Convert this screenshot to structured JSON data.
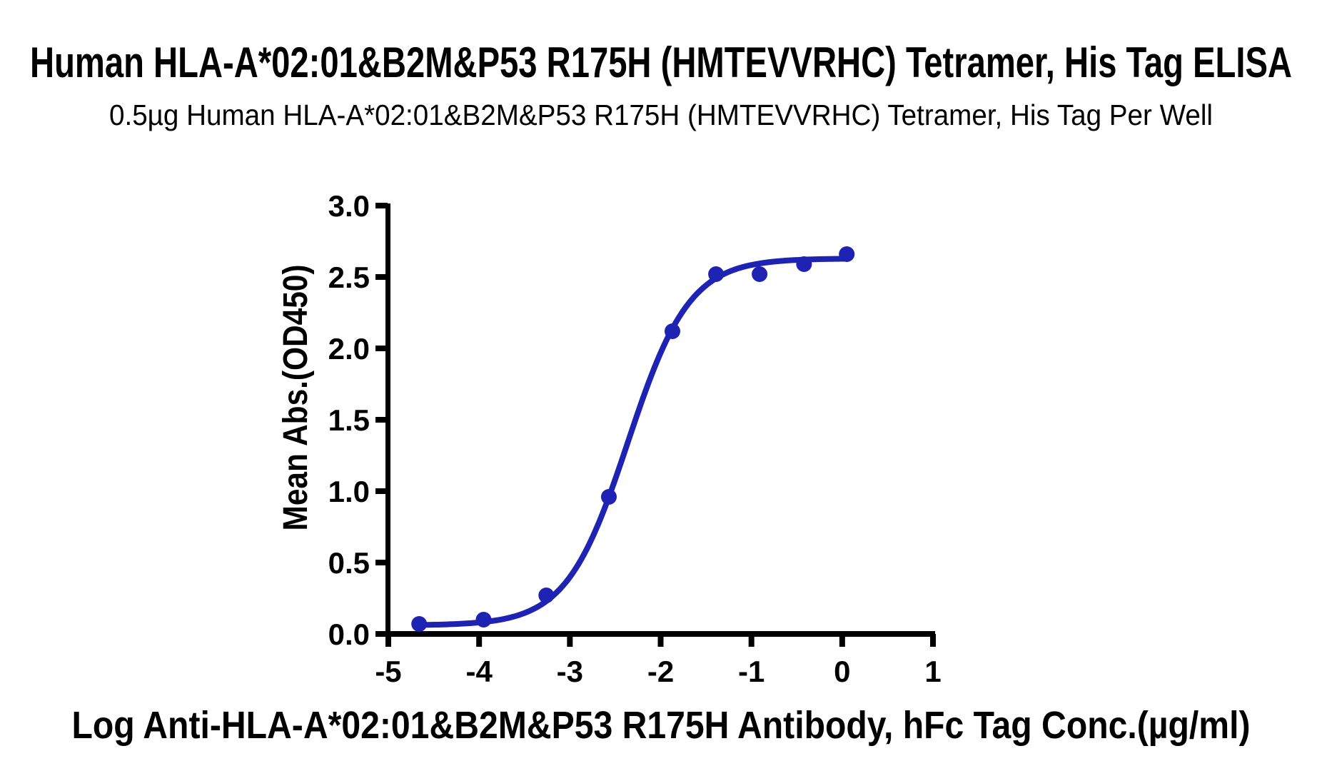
{
  "header": {
    "title": "Human HLA-A*02:01&B2M&P53 R175H (HMTEVVRHC) Tetramer, His Tag ELISA",
    "subtitle": "0.5µg Human HLA-A*02:01&B2M&P53 R175H (HMTEVVRHC) Tetramer, His Tag Per Well"
  },
  "chart_data": {
    "type": "scatter",
    "title": "Human HLA-A*02:01&B2M&P53 R175H (HMTEVVRHC) Tetramer, His Tag ELISA",
    "subtitle": "0.5µg Human HLA-A*02:01&B2M&P53 R175H (HMTEVVRHC) Tetramer, His Tag Per Well",
    "xlabel": "Log Anti-HLA-A*02:01&B2M&P53 R175H Antibody, hFc Tag Conc.(µg/ml)",
    "ylabel": "Mean Abs.(OD450)",
    "x": [
      -4.66,
      -3.95,
      -3.26,
      -2.57,
      -1.87,
      -1.39,
      -0.91,
      -0.42,
      0.05
    ],
    "y": [
      0.07,
      0.1,
      0.27,
      0.96,
      2.12,
      2.52,
      2.52,
      2.59,
      2.66
    ],
    "xlim": [
      -5,
      1
    ],
    "ylim": [
      0,
      3
    ],
    "x_ticks": {
      "values": [
        -5,
        -4,
        -3,
        -2,
        -1,
        0,
        1
      ],
      "labels": [
        "-5",
        "-4",
        "-3",
        "-2",
        "-1",
        "0",
        "1"
      ]
    },
    "y_ticks": {
      "values": [
        0,
        0.5,
        1,
        1.5,
        2,
        2.5,
        3
      ],
      "labels": [
        "0.0",
        "0.5",
        "1.0",
        "1.5",
        "2.0",
        "2.5",
        "3.0"
      ]
    },
    "grid": "off",
    "legend": "none",
    "fit_curve": {
      "model": "4PL-sigmoid",
      "bottom": 0.06,
      "top": 2.63,
      "logEC50": -2.36,
      "hillslope": 1.28,
      "x_start": -4.66,
      "x_end": 0.05
    },
    "colors": {
      "series": "#1e23b4",
      "axis": "#000000",
      "background": "#ffffff"
    }
  }
}
